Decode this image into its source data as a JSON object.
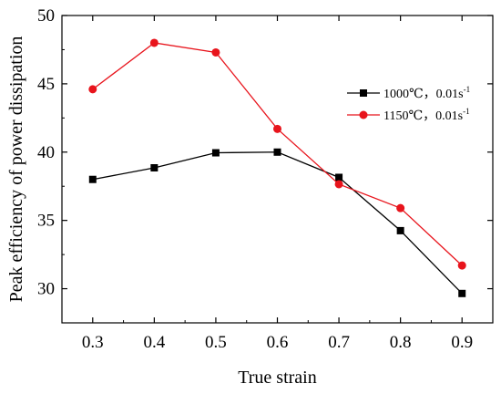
{
  "chart_data": {
    "type": "line",
    "xlabel": "True strain",
    "ylabel": "Peak efficiency of power dissipation",
    "x": [
      0.3,
      0.4,
      0.5,
      0.6,
      0.7,
      0.8,
      0.9
    ],
    "xlim": [
      0.25,
      0.95
    ],
    "ylim": [
      27.5,
      50
    ],
    "x_ticks": [
      "0.3",
      "0.4",
      "0.5",
      "0.6",
      "0.7",
      "0.8",
      "0.9"
    ],
    "x_tick_values": [
      0.3,
      0.4,
      0.5,
      0.6,
      0.7,
      0.8,
      0.9
    ],
    "y_ticks": [
      "30",
      "35",
      "40",
      "45",
      "50"
    ],
    "y_tick_values": [
      30,
      35,
      40,
      45,
      50
    ],
    "grid": false,
    "legend_position": "upper-right",
    "series": [
      {
        "name_main": "1000℃，0.01s",
        "name_sup": "-1",
        "color": "#000000",
        "marker": "square",
        "values": [
          38.0,
          38.85,
          39.95,
          40.0,
          38.15,
          34.25,
          29.65
        ]
      },
      {
        "name_main": "1150℃，0.01s",
        "name_sup": "-1",
        "color": "#e8141c",
        "marker": "circle",
        "values": [
          44.6,
          48.0,
          47.3,
          41.7,
          37.65,
          35.9,
          31.7
        ]
      }
    ]
  }
}
